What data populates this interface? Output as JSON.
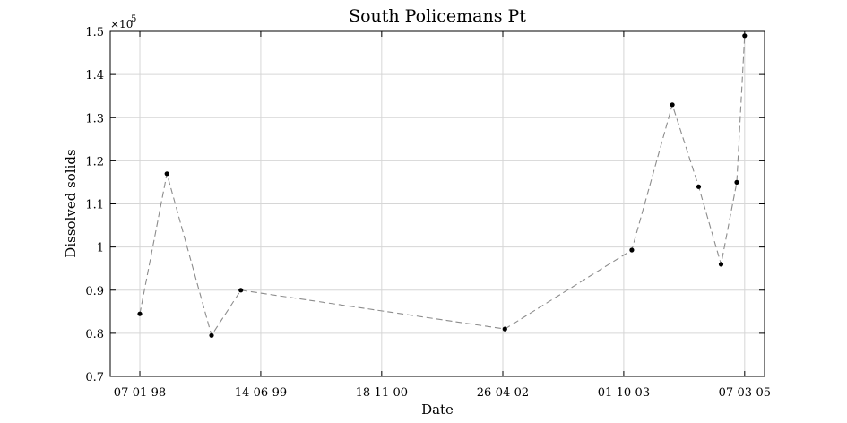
{
  "chart_data": {
    "type": "line",
    "title": "South Policemans Pt",
    "xlabel": "Date",
    "ylabel": "Dissolved solids",
    "y_multiplier_label": "×10",
    "y_multiplier_exponent": "5",
    "xlim": [
      "1997-09-01",
      "2005-06-01"
    ],
    "ylim": [
      0.7,
      1.5
    ],
    "x_ticks": [
      "07-01-98",
      "14-06-99",
      "18-11-00",
      "26-04-02",
      "01-10-03",
      "07-03-05"
    ],
    "y_ticks": [
      "0.7",
      "0.8",
      "0.9",
      "1",
      "1.1",
      "1.2",
      "1.3",
      "1.4",
      "1.5"
    ],
    "grid": true,
    "series": [
      {
        "line_style": "dashed",
        "marker": "dot",
        "color": "#8c8c8c",
        "marker_color": "#000000",
        "x": [
          "1998-01-07",
          "1998-05-04",
          "1998-11-13",
          "1999-03-20",
          "2002-05-05",
          "2003-11-05",
          "2004-04-28",
          "2004-08-20",
          "2004-11-25",
          "2005-02-01",
          "2005-03-07"
        ],
        "y": [
          0.845,
          1.17,
          0.795,
          0.9,
          0.81,
          0.993,
          1.33,
          1.14,
          0.96,
          1.15,
          1.49
        ]
      }
    ]
  }
}
